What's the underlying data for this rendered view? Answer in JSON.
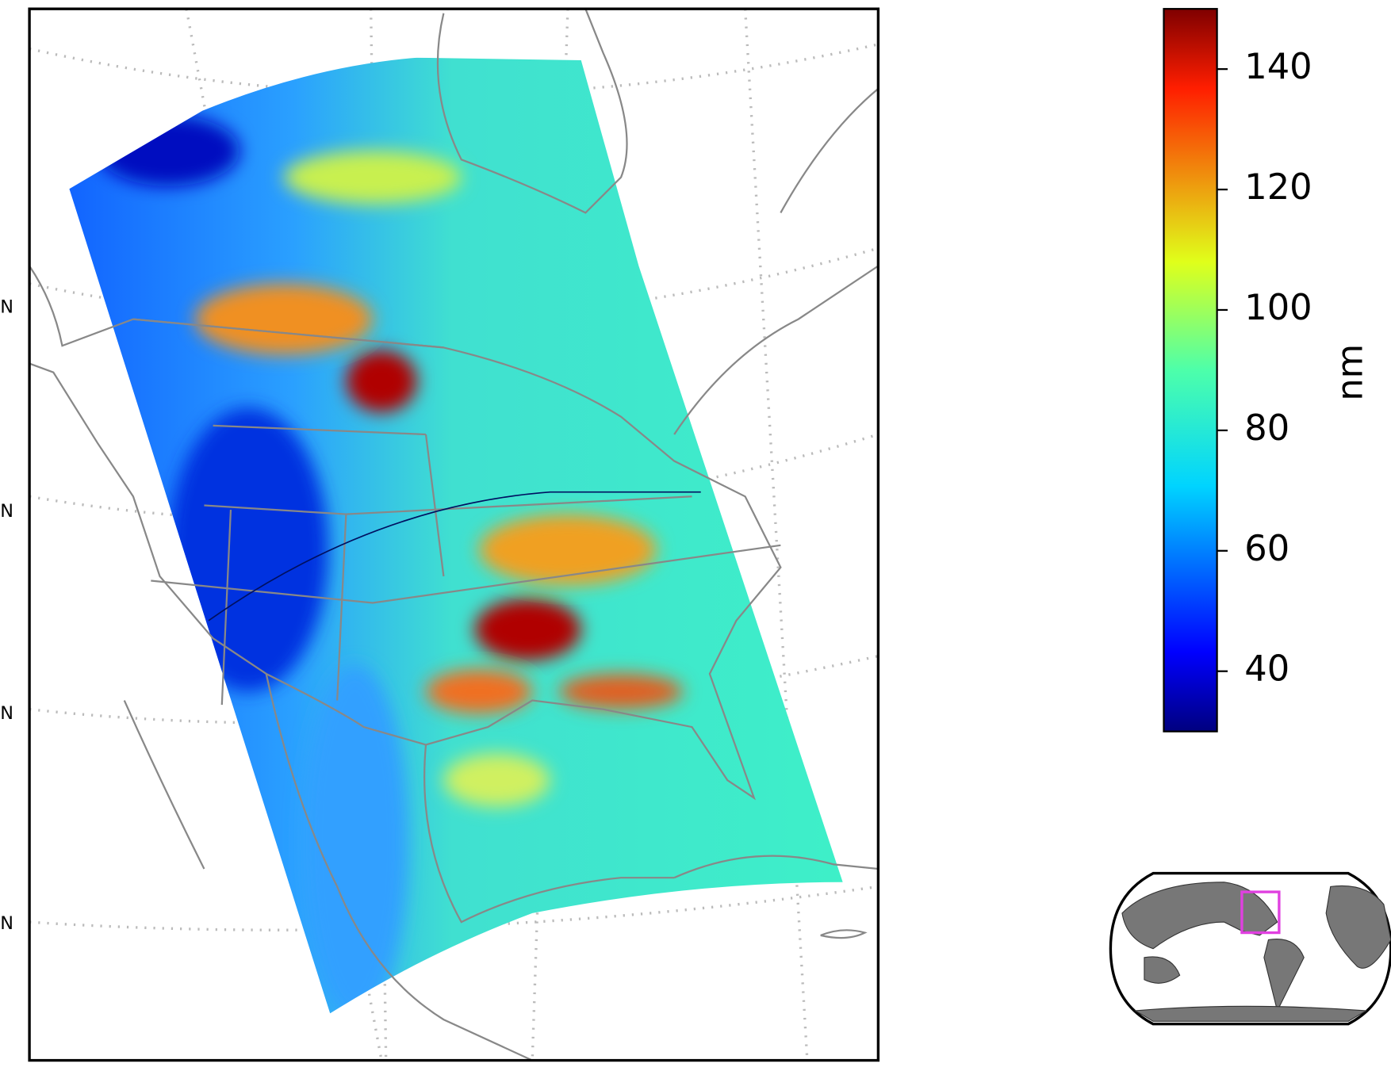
{
  "map": {
    "lat_labels": [
      "N",
      "N",
      "N",
      "N"
    ],
    "colorbar": {
      "label": "nm",
      "lim": [
        30,
        150
      ],
      "ticks": [
        40,
        60,
        80,
        100,
        120,
        140
      ],
      "colormap": "jet"
    }
  }
}
